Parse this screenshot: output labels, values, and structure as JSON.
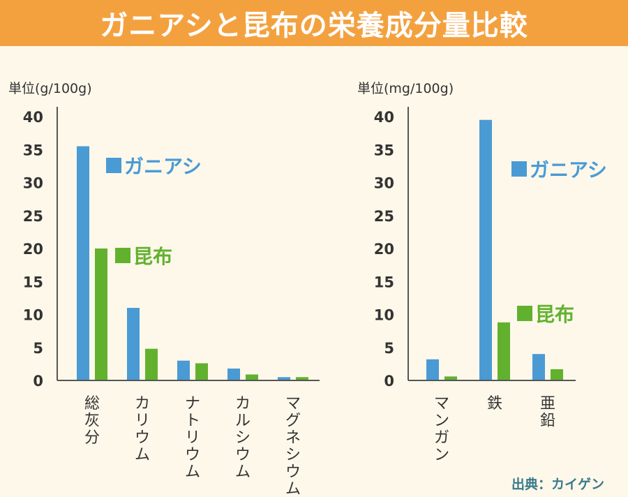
{
  "title": "ガニアシと昆布の栄養成分量比較",
  "source": "出典：カイゲン",
  "colors": {
    "ganiashi": "#4a9ad4",
    "konbu": "#62b12e",
    "title_bg": "#f3a13f",
    "background": "#fdf8ea",
    "text": "#333333"
  },
  "chart_data": [
    {
      "type": "bar",
      "ylabel": "単位(g/100g)",
      "ylim": [
        0,
        40
      ],
      "yticks": [
        0,
        5,
        10,
        15,
        20,
        25,
        30,
        35,
        40
      ],
      "categories": [
        "総灰分",
        "カリウム",
        "ナトリウム",
        "カルシウム",
        "マグネシウム"
      ],
      "series": [
        {
          "name": "ガニアシ",
          "values": [
            35.5,
            11,
            3,
            1.8,
            0.5
          ]
        },
        {
          "name": "昆布",
          "values": [
            20,
            4.8,
            2.6,
            0.9,
            0.5
          ]
        }
      ],
      "legend": "inside"
    },
    {
      "type": "bar",
      "ylabel": "単位(mg/100g)",
      "ylim": [
        0,
        40
      ],
      "yticks": [
        0,
        5,
        10,
        15,
        20,
        25,
        30,
        35,
        40
      ],
      "categories": [
        "マンガン",
        "鉄",
        "亜鉛"
      ],
      "series": [
        {
          "name": "ガニアシ",
          "values": [
            3.2,
            39.5,
            4
          ]
        },
        {
          "name": "昆布",
          "values": [
            0.6,
            8.8,
            1.7
          ]
        }
      ],
      "legend": "inside"
    }
  ]
}
